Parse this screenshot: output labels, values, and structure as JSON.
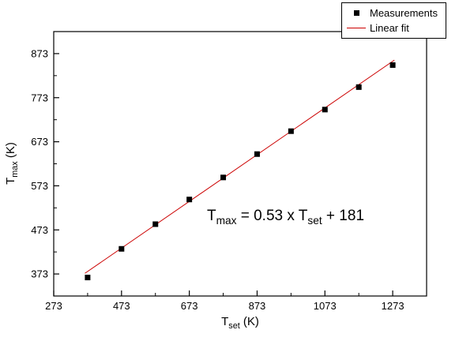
{
  "chart_data": {
    "type": "scatter",
    "title": "",
    "xlabel": {
      "main": "T",
      "sub": "set",
      "unit": " (K)"
    },
    "ylabel": {
      "main": "T",
      "sub": "max",
      "unit": " (K)"
    },
    "xlim": [
      273,
      1373
    ],
    "ylim": [
      323,
      923
    ],
    "xticks": [
      273,
      473,
      673,
      873,
      1073,
      1273
    ],
    "yticks": [
      373,
      473,
      573,
      673,
      773,
      873
    ],
    "grid": false,
    "legend_position": "top-right",
    "series": [
      {
        "name": "Measurements",
        "type": "scatter",
        "marker": "square",
        "color": "#000000",
        "x": [
          373,
          473,
          573,
          673,
          773,
          873,
          973,
          1073,
          1173,
          1273
        ],
        "y": [
          365,
          430,
          486,
          542,
          592,
          645,
          697,
          746,
          797,
          847
        ]
      },
      {
        "name": "Linear fit",
        "type": "line",
        "color": "#cc0000",
        "slope": 0.53,
        "intercept": 181,
        "x_range": [
          365,
          1278
        ]
      }
    ],
    "annotation": {
      "p1": "T",
      "s1": "max",
      "p2": " = 0.53 x T",
      "s2": "set",
      "p3": " + 181"
    }
  }
}
